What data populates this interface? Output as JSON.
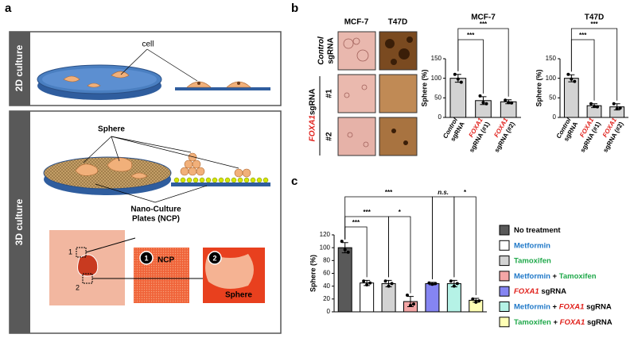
{
  "panels": {
    "a": {
      "label": "a",
      "culture_2d": "2D culture",
      "cell": "cell",
      "culture_3d": "3D culture",
      "sphere": "Sphere",
      "ncp": [
        "Nano-Culture",
        "Plates (NCP)"
      ],
      "inset_marks": [
        "1",
        "2"
      ],
      "zoom_labels": [
        "NCP",
        "Sphere"
      ]
    },
    "b": {
      "label": "b",
      "columns": [
        "MCF-7",
        "T47D"
      ],
      "control": [
        "Control",
        "sgRNA"
      ],
      "foxa1": [
        "FOXA1",
        "sgRNA"
      ],
      "clones": [
        "#1",
        "#2"
      ]
    },
    "c": {
      "label": "c"
    }
  },
  "chart_data": [
    {
      "type": "bar",
      "title": "MCF-7",
      "ylabel": "Sphere (%)",
      "categories": [
        [
          "Control",
          "sgRNA"
        ],
        [
          "FOXA1",
          "sgRNA (#1)"
        ],
        [
          "FOXA1",
          "sgRNA (#2)"
        ]
      ],
      "values": [
        100,
        43,
        40
      ],
      "errors": [
        10,
        10,
        5
      ],
      "points": [
        [
          110,
          98,
          90
        ],
        [
          55,
          38,
          35
        ],
        [
          44,
          38,
          37
        ]
      ],
      "color": "#d3d3d3",
      "ylim": [
        0,
        150
      ],
      "yticks": [
        0,
        50,
        100,
        150
      ],
      "annotations": [
        "***",
        "***"
      ]
    },
    {
      "type": "bar",
      "title": "T47D",
      "ylabel": "Sphere (%)",
      "categories": [
        [
          "Control",
          "sgRNA"
        ],
        [
          "FOXA1",
          "sgRNA (#1)"
        ],
        [
          "FOXA1",
          "sgRNA (#2)"
        ]
      ],
      "values": [
        100,
        30,
        27
      ],
      "errors": [
        9,
        5,
        8
      ],
      "points": [
        [
          110,
          98,
          92
        ],
        [
          35,
          28,
          27
        ],
        [
          35,
          22,
          24
        ]
      ],
      "color": "#d3d3d3",
      "ylim": [
        0,
        150
      ],
      "yticks": [
        0,
        50,
        100,
        150
      ],
      "annotations": [
        "***",
        "***"
      ]
    },
    {
      "type": "bar",
      "ylabel": "Sphere (%)",
      "categories": [
        null,
        null,
        null,
        null,
        null,
        null,
        null
      ],
      "values": [
        100,
        45,
        44,
        16,
        44,
        44,
        18
      ],
      "errors": [
        8,
        4,
        5,
        8,
        2,
        5,
        3
      ],
      "points": [
        [
          110,
          97,
          93
        ],
        [
          48,
          42,
          45
        ],
        [
          48,
          40,
          44
        ],
        [
          26,
          10,
          12
        ],
        [
          45,
          43,
          44
        ],
        [
          48,
          40,
          44
        ],
        [
          20,
          15,
          17
        ]
      ],
      "colors": [
        "#595959",
        "#ffffff",
        "#d3d3d3",
        "#f4a6a6",
        "#8585f2",
        "#b5f2e6",
        "#ffffb5"
      ],
      "ylim": [
        0,
        120
      ],
      "yticks": [
        0,
        20,
        40,
        60,
        80,
        100,
        120
      ],
      "annotations": [
        "***",
        "***",
        "*",
        "***",
        "n.s.",
        "*"
      ],
      "legend": [
        [
          {
            "text": "No treatment",
            "color": "#000000"
          }
        ],
        [
          {
            "text": "Metformin",
            "color": "#1f78c8"
          }
        ],
        [
          {
            "text": "Tamoxifen",
            "color": "#1fa84a"
          }
        ],
        [
          {
            "text": "Metformin",
            "color": "#1f78c8"
          },
          {
            "text": " + ",
            "color": "#000000"
          },
          {
            "text": "Tamoxifen",
            "color": "#1fa84a"
          }
        ],
        [
          {
            "text": "FOXA1",
            "color": "#e0201b",
            "italic": true
          },
          {
            "text": " sgRNA",
            "color": "#000000"
          }
        ],
        [
          {
            "text": "Metformin",
            "color": "#1f78c8"
          },
          {
            "text": " + ",
            "color": "#000000"
          },
          {
            "text": "FOXA1",
            "color": "#e0201b",
            "italic": true
          },
          {
            "text": " sgRNA",
            "color": "#000000"
          }
        ],
        [
          {
            "text": "Tamoxifen",
            "color": "#1fa84a"
          },
          {
            "text": " + ",
            "color": "#000000"
          },
          {
            "text": "FOXA1",
            "color": "#e0201b",
            "italic": true
          },
          {
            "text": " sgRNA",
            "color": "#000000"
          }
        ]
      ]
    }
  ]
}
